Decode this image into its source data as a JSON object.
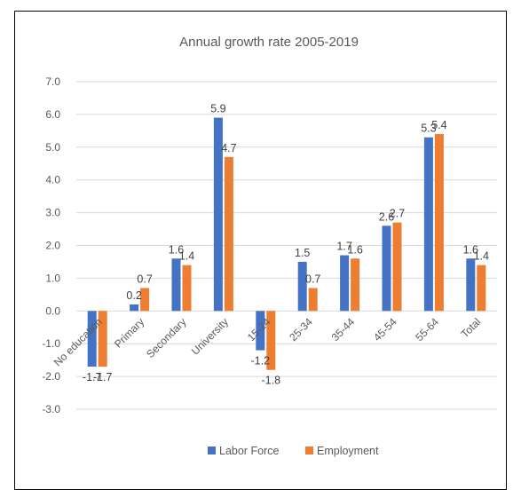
{
  "chart_data": {
    "type": "bar",
    "title": "Annual growth rate 2005-2019",
    "xlabel": "",
    "ylabel": "",
    "categories": [
      "No education",
      "Primary",
      "Secondary",
      "University",
      "15-24",
      "25-34",
      "35-44",
      "45-54",
      "55-64",
      "Total"
    ],
    "series": [
      {
        "name": "Labor Force",
        "values": [
          -1.7,
          0.2,
          1.6,
          5.9,
          -1.2,
          1.5,
          1.7,
          2.6,
          5.3,
          1.6
        ],
        "color": "#4472C4"
      },
      {
        "name": "Employment",
        "values": [
          -1.7,
          0.7,
          1.4,
          4.7,
          -1.8,
          0.7,
          1.6,
          2.7,
          5.4,
          1.4
        ],
        "color": "#ED7D31"
      }
    ],
    "ylim": [
      -3,
      7
    ],
    "yticks": [
      "7.0",
      "6.0",
      "5.0",
      "4.0",
      "3.0",
      "2.0",
      "1.0",
      "0.0",
      "-1.0",
      "-2.0",
      "-3.0"
    ],
    "grid": true,
    "legend": "bottom"
  }
}
